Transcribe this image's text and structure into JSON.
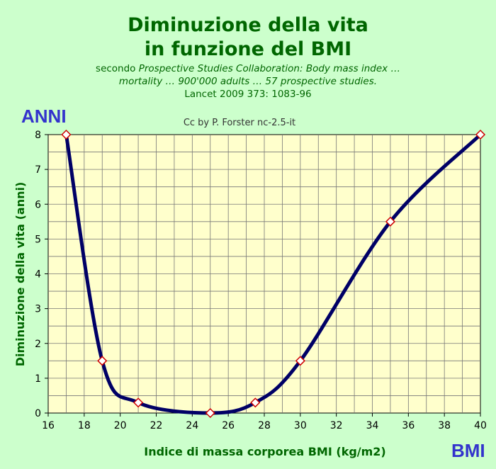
{
  "chart_data": {
    "type": "line",
    "title_line1": "Diminuzione della vita",
    "title_line2": "in funzione del BMI",
    "subtitle_prefix": "secondo",
    "subtitle_italic_1": "Prospective Studies Collaboration: Body mass index …",
    "subtitle_italic_2": "mortality … 900'000 adults … 57 prospective studies.",
    "subtitle_line3": "Lancet 2009 373: 1083-96",
    "credit": "Cc by P. Forster nc-2.5-it",
    "xlabel": "Indice di massa corporea BMI (kg/m2)",
    "ylabel": "Diminuzione della vita (anni)",
    "y_unit_label": "ANNI",
    "x_unit_label": "BMI",
    "xlim": [
      16,
      40
    ],
    "ylim": [
      0,
      8
    ],
    "xticks": [
      16,
      18,
      20,
      22,
      24,
      26,
      28,
      30,
      32,
      34,
      36,
      38,
      40
    ],
    "yticks": [
      0,
      1,
      2,
      3,
      4,
      5,
      6,
      7,
      8
    ],
    "grid": true,
    "series": [
      {
        "x": [
          17,
          19,
          21,
          25,
          27.5,
          30,
          35,
          40
        ],
        "y": [
          8,
          1.5,
          0.3,
          0,
          0.3,
          1.5,
          5.5,
          8
        ]
      }
    ],
    "colors": {
      "line": "#000066",
      "marker_stroke": "#cc0000",
      "marker_fill": "#ffffff",
      "plot_bg": "#ffffcc",
      "title": "#006600",
      "unit_labels": "#3333cc"
    }
  }
}
